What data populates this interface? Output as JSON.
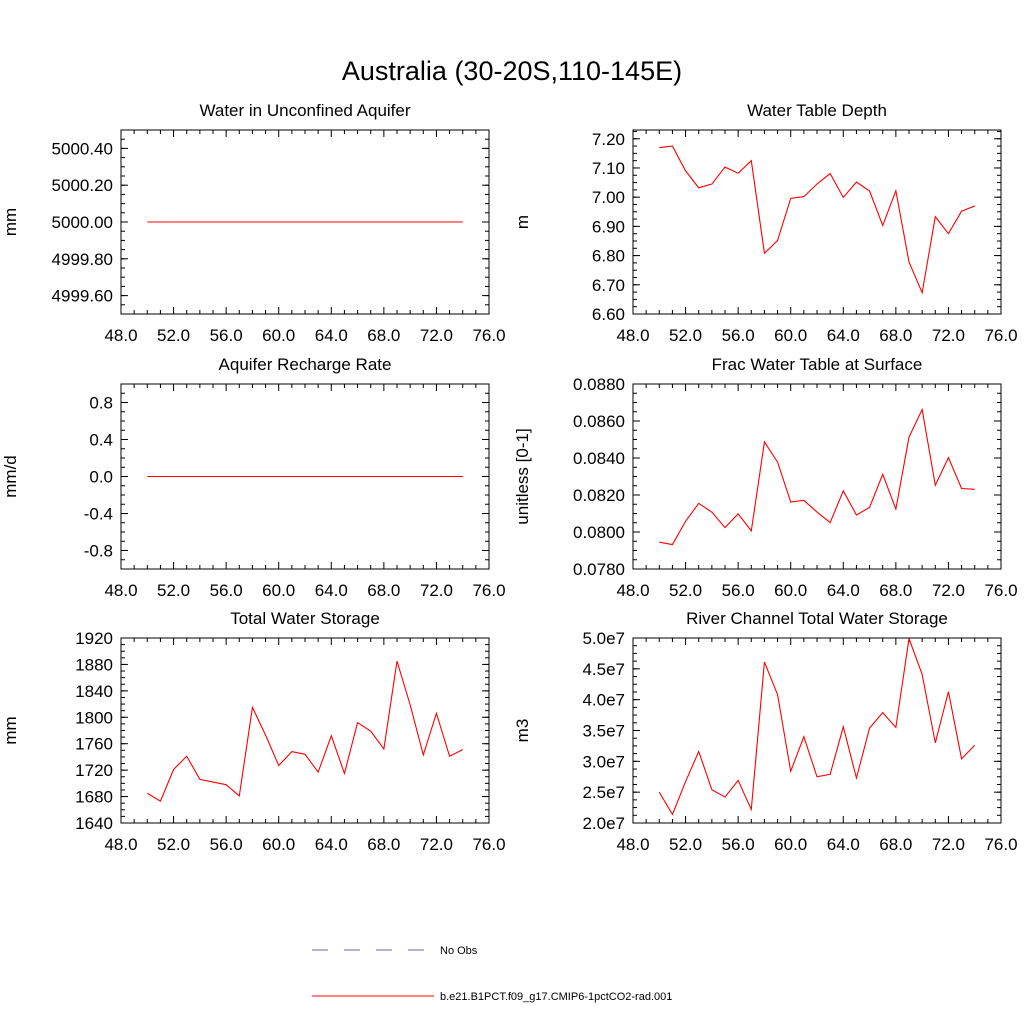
{
  "figure": {
    "title": "Australia (30-20S,110-145E)"
  },
  "colors": {
    "model_line": "#ff0000",
    "obs_line": "#6a6ab0",
    "axes": "#000000"
  },
  "legend": {
    "entries": [
      {
        "label": "No Obs",
        "style": "dashed",
        "color": "#6a6ab0"
      },
      {
        "label": "b.e21.B1PCT.f09_g17.CMIP6-1pctCO2-rad.001",
        "style": "solid",
        "color": "#ff0000"
      }
    ]
  },
  "chart_data": [
    {
      "type": "line",
      "title": "Water in Unconfined Aquifer",
      "ylabel": "mm",
      "xlim": [
        48,
        76
      ],
      "ylim": [
        4999.5,
        5000.5
      ],
      "xticks": [
        "48.0",
        "52.0",
        "56.0",
        "60.0",
        "64.0",
        "68.0",
        "72.0",
        "76.0"
      ],
      "yticks": [
        {
          "v": 4999.6,
          "label": "4999.60"
        },
        {
          "v": 4999.8,
          "label": "4999.80"
        },
        {
          "v": 5000.0,
          "label": "5000.00"
        },
        {
          "v": 5000.2,
          "label": "5000.20"
        },
        {
          "v": 5000.4,
          "label": "5000.40"
        }
      ],
      "x": [
        50,
        51,
        52,
        53,
        54,
        55,
        56,
        57,
        58,
        59,
        60,
        61,
        62,
        63,
        64,
        65,
        66,
        67,
        68,
        69,
        70,
        71,
        72,
        73,
        74
      ],
      "values": [
        5000,
        5000,
        5000,
        5000,
        5000,
        5000,
        5000,
        5000,
        5000,
        5000,
        5000,
        5000,
        5000,
        5000,
        5000,
        5000,
        5000,
        5000,
        5000,
        5000,
        5000,
        5000,
        5000,
        5000,
        5000
      ]
    },
    {
      "type": "line",
      "title": "Water Table Depth",
      "ylabel": "m",
      "xlim": [
        48,
        76
      ],
      "ylim": [
        6.6,
        7.23
      ],
      "xticks": [
        "48.0",
        "52.0",
        "56.0",
        "60.0",
        "64.0",
        "68.0",
        "72.0",
        "76.0"
      ],
      "yticks": [
        {
          "v": 6.6,
          "label": "6.60"
        },
        {
          "v": 6.7,
          "label": "6.70"
        },
        {
          "v": 6.8,
          "label": "6.80"
        },
        {
          "v": 6.9,
          "label": "6.90"
        },
        {
          "v": 7.0,
          "label": "7.00"
        },
        {
          "v": 7.1,
          "label": "7.10"
        },
        {
          "v": 7.2,
          "label": "7.20"
        }
      ],
      "x": [
        50,
        51,
        52,
        53,
        54,
        55,
        56,
        57,
        58,
        59,
        60,
        61,
        62,
        63,
        64,
        65,
        66,
        67,
        68,
        69,
        70,
        71,
        72,
        73,
        74
      ],
      "values": [
        7.17,
        7.175,
        7.09,
        7.032,
        7.045,
        7.103,
        7.082,
        7.125,
        6.808,
        6.852,
        6.996,
        7.002,
        7.045,
        7.081,
        6.999,
        7.052,
        7.021,
        6.903,
        7.022,
        6.778,
        6.673,
        6.933,
        6.875,
        6.952,
        6.97
      ]
    },
    {
      "type": "line",
      "title": "Aquifer Recharge Rate",
      "ylabel": "mm/d",
      "xlim": [
        48,
        76
      ],
      "ylim": [
        -1.0,
        1.0
      ],
      "xticks": [
        "48.0",
        "52.0",
        "56.0",
        "60.0",
        "64.0",
        "68.0",
        "72.0",
        "76.0"
      ],
      "yticks": [
        {
          "v": -0.8,
          "label": "-0.8"
        },
        {
          "v": -0.4,
          "label": "-0.4"
        },
        {
          "v": 0.0,
          "label": "0.0"
        },
        {
          "v": 0.4,
          "label": "0.4"
        },
        {
          "v": 0.8,
          "label": "0.8"
        }
      ],
      "x": [
        50,
        51,
        52,
        53,
        54,
        55,
        56,
        57,
        58,
        59,
        60,
        61,
        62,
        63,
        64,
        65,
        66,
        67,
        68,
        69,
        70,
        71,
        72,
        73,
        74
      ],
      "values": [
        0,
        0,
        0,
        0,
        0,
        0,
        0,
        0,
        0,
        0,
        0,
        0,
        0,
        0,
        0,
        0,
        0,
        0,
        0,
        0,
        0,
        0,
        0,
        0,
        0
      ]
    },
    {
      "type": "line",
      "title": "Frac Water Table at Surface",
      "ylabel": "unitless [0-1]",
      "xlim": [
        48,
        76
      ],
      "ylim": [
        0.078,
        0.088
      ],
      "xticks": [
        "48.0",
        "52.0",
        "56.0",
        "60.0",
        "64.0",
        "68.0",
        "72.0",
        "76.0"
      ],
      "yticks": [
        {
          "v": 0.078,
          "label": "0.0780"
        },
        {
          "v": 0.08,
          "label": "0.0800"
        },
        {
          "v": 0.082,
          "label": "0.0820"
        },
        {
          "v": 0.084,
          "label": "0.0840"
        },
        {
          "v": 0.086,
          "label": "0.0860"
        },
        {
          "v": 0.088,
          "label": "0.0880"
        }
      ],
      "x": [
        50,
        51,
        52,
        53,
        54,
        55,
        56,
        57,
        58,
        59,
        60,
        61,
        62,
        63,
        64,
        65,
        66,
        67,
        68,
        69,
        70,
        71,
        72,
        73,
        74
      ],
      "values": [
        0.07945,
        0.07932,
        0.08058,
        0.08155,
        0.08107,
        0.08024,
        0.08098,
        0.08006,
        0.08487,
        0.08378,
        0.08162,
        0.08171,
        0.08108,
        0.08051,
        0.08222,
        0.08092,
        0.08133,
        0.08312,
        0.08124,
        0.08513,
        0.08662,
        0.08253,
        0.08402,
        0.08235,
        0.08231
      ]
    },
    {
      "type": "line",
      "title": "Total Water Storage",
      "ylabel": "mm",
      "xlim": [
        48,
        76
      ],
      "ylim": [
        1640,
        1920
      ],
      "xticks": [
        "48.0",
        "52.0",
        "56.0",
        "60.0",
        "64.0",
        "68.0",
        "72.0",
        "76.0"
      ],
      "yticks": [
        {
          "v": 1640,
          "label": "1640"
        },
        {
          "v": 1680,
          "label": "1680"
        },
        {
          "v": 1720,
          "label": "1720"
        },
        {
          "v": 1760,
          "label": "1760"
        },
        {
          "v": 1800,
          "label": "1800"
        },
        {
          "v": 1840,
          "label": "1840"
        },
        {
          "v": 1880,
          "label": "1880"
        },
        {
          "v": 1920,
          "label": "1920"
        }
      ],
      "x": [
        50,
        51,
        52,
        53,
        54,
        55,
        56,
        57,
        58,
        59,
        60,
        61,
        62,
        63,
        64,
        65,
        66,
        67,
        68,
        69,
        70,
        71,
        72,
        73,
        74
      ],
      "values": [
        1685,
        1673,
        1721,
        1741,
        1706,
        1702,
        1698,
        1681,
        1815,
        1773,
        1727,
        1748,
        1744,
        1717,
        1772,
        1715,
        1792,
        1779,
        1752,
        1885,
        1819,
        1743,
        1806,
        1741,
        1751
      ]
    },
    {
      "type": "line",
      "title": "River Channel Total Water Storage",
      "ylabel": "m3",
      "xlim": [
        48,
        76
      ],
      "ylim": [
        20000000,
        50000000
      ],
      "xticks": [
        "48.0",
        "52.0",
        "56.0",
        "60.0",
        "64.0",
        "68.0",
        "72.0",
        "76.0"
      ],
      "yticks": [
        {
          "v": 20000000,
          "label": "2.0e7"
        },
        {
          "v": 25000000,
          "label": "2.5e7"
        },
        {
          "v": 30000000,
          "label": "3.0e7"
        },
        {
          "v": 35000000,
          "label": "3.5e7"
        },
        {
          "v": 40000000,
          "label": "4.0e7"
        },
        {
          "v": 45000000,
          "label": "4.5e7"
        },
        {
          "v": 50000000,
          "label": "5.0e7"
        }
      ],
      "x": [
        50,
        51,
        52,
        53,
        54,
        55,
        56,
        57,
        58,
        59,
        60,
        61,
        62,
        63,
        64,
        65,
        66,
        67,
        68,
        69,
        70,
        71,
        72,
        73,
        74
      ],
      "values": [
        25000000,
        21400000,
        26700000,
        31600000,
        25400000,
        24200000,
        26900000,
        22200000,
        46100000,
        40800000,
        28400000,
        34000000,
        27500000,
        27900000,
        35600000,
        27300000,
        35400000,
        37900000,
        35500000,
        49900000,
        44100000,
        33000000,
        41300000,
        30400000,
        32600000
      ]
    }
  ]
}
